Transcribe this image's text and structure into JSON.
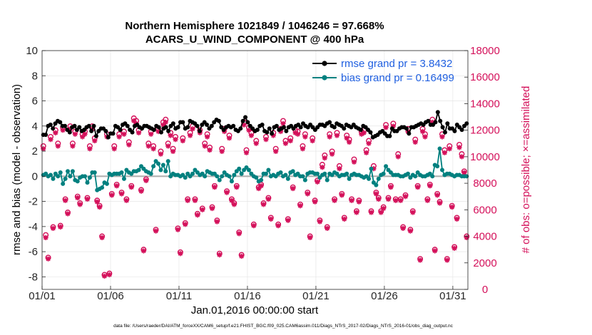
{
  "chart_data": {
    "type": "line",
    "title": "Northern Hemisphere 1021849 / 1046246 = 97.668%",
    "subtitle": "ACARS_U_WIND_COMPONENT @ 400 hPa",
    "xlabel": "Jan.01,2016 00:00:00 start",
    "ylabel_left": "rmse and bias (model - observation)",
    "ylabel_right": "# of obs: o=possible; ×=assimilated",
    "footnote": "data file: /Users/raeder/DAI/ATM_forceXX/CAM6_setup/f.e21.FHIST_BGC.f09_025.CAM6assim.011/Diags_NTrS_2017-02/Diags_NTrS_2016-01/obs_diag_output.nc",
    "xlim": [
      1,
      32.1
    ],
    "ylim_left": [
      -9,
      10
    ],
    "ylim_right": [
      0,
      18000
    ],
    "x_ticks": [
      1,
      6,
      11,
      16,
      21,
      26,
      31
    ],
    "x_tick_labels": [
      "01/01",
      "01/06",
      "01/11",
      "01/16",
      "01/21",
      "01/26",
      "01/31"
    ],
    "y_left_ticks": [
      -8,
      -6,
      -4,
      -2,
      0,
      2,
      4,
      6,
      8,
      10
    ],
    "y_right_ticks": [
      0,
      2000,
      4000,
      6000,
      8000,
      10000,
      12000,
      14000,
      16000,
      18000
    ],
    "zero_line": 0,
    "colors": {
      "rmse": "#000000",
      "bias": "#00807f",
      "obs": "#d4105a",
      "legend_text": "#1f5fe0",
      "zero_line": "#b0b0b0"
    },
    "series": [
      {
        "name": "rmse",
        "legend": "rmse grand pr = 3.8432",
        "axis": "left",
        "values": [
          3.3,
          3.3,
          4.0,
          4.1,
          3.8,
          4.2,
          4.4,
          4.3,
          4.0,
          4.0,
          3.7,
          3.5,
          3.9,
          4.0,
          3.7,
          3.9,
          3.6,
          3.7,
          3.9,
          4.0,
          3.6,
          4.0,
          3.2,
          3.6,
          3.8,
          3.8,
          3.6,
          3.1,
          3.4,
          3.4,
          4.0,
          3.9,
          3.7,
          4.1,
          4.2,
          4.0,
          3.7,
          3.5,
          4.0,
          4.1,
          3.9,
          3.8,
          4.0,
          4.0,
          3.9,
          3.8,
          3.7,
          4.0,
          3.9,
          3.5,
          3.8,
          3.9,
          3.6,
          4.0,
          4.2,
          3.8,
          3.9,
          4.3,
          4.3,
          3.8,
          3.9,
          4.4,
          4.3,
          4.2,
          4.0,
          3.6,
          4.1,
          4.3,
          4.1,
          3.8,
          4.0,
          4.3,
          4.5,
          4.4,
          3.9,
          3.7,
          3.9,
          4.0,
          3.9,
          4.0,
          3.7,
          3.6,
          3.8,
          4.4,
          4.7,
          4.3,
          4.0,
          3.8,
          3.6,
          3.7,
          4.0,
          4.1,
          3.6,
          3.5,
          3.8,
          3.4,
          3.9,
          4.0,
          3.7,
          3.8,
          3.9,
          3.6,
          3.9,
          4.0,
          3.8,
          4.0,
          4.1,
          3.9,
          4.2,
          4.0,
          3.9,
          4.1,
          3.9,
          3.7,
          3.9,
          4.1,
          4.1,
          4.0,
          4.2,
          4.3,
          4.0,
          3.9,
          4.2,
          4.1,
          4.0,
          3.8,
          4.1,
          4.0,
          3.9,
          4.1,
          3.9,
          3.8,
          3.7,
          4.0,
          3.9,
          3.7,
          3.5,
          3.1,
          3.2,
          3.3,
          3.5,
          3.6,
          3.4,
          3.2,
          3.2,
          3.8,
          3.6,
          3.6,
          3.8,
          3.9,
          3.9,
          3.8,
          3.4,
          3.9,
          3.9,
          4.0,
          4.1,
          4.2,
          4.1,
          4.3,
          4.4,
          4.1,
          4.1,
          4.3,
          5.1,
          4.4,
          3.9,
          3.5,
          4.2,
          3.8,
          3.8,
          3.6,
          4.1,
          3.9,
          3.7,
          4.0,
          4.2
        ]
      },
      {
        "name": "bias",
        "legend": "bias grand pr = 0.16499",
        "axis": "left",
        "values": [
          0.1,
          0.2,
          0.0,
          0.1,
          -0.2,
          0.2,
          0.0,
          0.3,
          -0.6,
          -0.2,
          0.4,
          0.0,
          0.4,
          -0.3,
          -0.4,
          -0.1,
          0.0,
          0.0,
          -0.5,
          -0.1,
          0.3,
          0.3,
          -1.1,
          -1.0,
          -0.9,
          -0.5,
          -0.6,
          0.2,
          0.1,
          0.2,
          0.2,
          0.2,
          0.3,
          -0.2,
          0.5,
          0.3,
          0.2,
          0.4,
          0.4,
          0.5,
          0.8,
          0.6,
          0.4,
          0.3,
          0.2,
          0.8,
          1.2,
          1.0,
          0.5,
          0.9,
          0.4,
          1.2,
          0.0,
          0.2,
          0.1,
          0.1,
          0.0,
          0.1,
          -0.1,
          0.2,
          0.0,
          0.2,
          0.5,
          0.3,
          0.1,
          0.2,
          0.0,
          0.4,
          0.3,
          0.2,
          0.2,
          0.0,
          -0.3,
          0.0,
          0.3,
          0.1,
          0.0,
          -0.4,
          0.1,
          0.4,
          0.6,
          0.2,
          0.5,
          0.7,
          0.5,
          0.2,
          0.0,
          -0.1,
          -0.4,
          -0.3,
          0.2,
          0.2,
          0.5,
          0.0,
          0.1,
          0.0,
          0.2,
          0.3,
          0.0,
          0.1,
          -0.2,
          0.3,
          0.4,
          0.1,
          0.2,
          0.0,
          0.0,
          -0.3,
          0.2,
          0.3,
          0.3,
          0.2,
          0.2,
          -0.1,
          0.1,
          0.2,
          -0.3,
          0.2,
          0.1,
          0.3,
          0.2,
          0.0,
          0.1,
          0.1,
          0.2,
          -0.2,
          0.1,
          0.2,
          0.1,
          0.1,
          0.0,
          -0.1,
          0.0,
          -0.2,
          0.6,
          -0.5,
          -0.7,
          -0.2,
          0.1,
          0.2,
          0.8,
          0.5,
          0.3,
          0.1,
          0.1,
          0.1,
          0.0,
          0.0,
          0.1,
          0.2,
          -0.1,
          0.1,
          0.0,
          0.3,
          0.1,
          0.0,
          0.0,
          0.1,
          0.2,
          0.0,
          0.9,
          0.8,
          2.2,
          0.5,
          0.1,
          0.2,
          0.2,
          0.1,
          0.0,
          0.1,
          0.1,
          0.0,
          0.0,
          0.0
        ]
      },
      {
        "name": "obs_possible",
        "marker": "o",
        "axis": "right",
        "values": [
          10800,
          4100,
          2400,
          11500,
          4700,
          12000,
          11000,
          4800,
          12200,
          6800,
          5800,
          12300,
          11000,
          11900,
          7000,
          6500,
          11700,
          11900,
          6900,
          10800,
          12300,
          11400,
          6700,
          6300,
          4000,
          1100,
          11700,
          1200,
          7200,
          10800,
          7900,
          11700,
          7300,
          11900,
          6800,
          11100,
          7800,
          12900,
          12700,
          12000,
          7500,
          3000,
          8300,
          11000,
          11900,
          10800,
          4500,
          12100,
          10400,
          12600,
          12800,
          11000,
          11800,
          10600,
          11500,
          4600,
          2800,
          11400,
          5000,
          6800,
          11800,
          12300,
          6800,
          5700,
          12000,
          6100,
          11000,
          11700,
          10700,
          6200,
          7800,
          5200,
          2700,
          10600,
          12100,
          7400,
          11600,
          6800,
          6500,
          7800,
          4300,
          2600,
          12600,
          10500,
          12200,
          11800,
          4900,
          11200,
          7700,
          7900,
          6500,
          11500,
          6900,
          5400,
          11800,
          10600,
          4900,
          12100,
          12700,
          11200,
          5300,
          11400,
          7700,
          12000,
          11900,
          6400,
          10800,
          11700,
          7300,
          4000,
          11400,
          6700,
          8200,
          5200,
          9400,
          10100,
          4700,
          11700,
          10400,
          6800,
          11800,
          9300,
          7200,
          5400,
          11600,
          11300,
          6800,
          9800,
          5900,
          6700,
          11900,
          12000,
          10500,
          11200,
          5900,
          9300,
          7300,
          6900,
          5900,
          6200,
          12400,
          6900,
          7800,
          12500,
          6800,
          10200,
          6800,
          4700,
          7100,
          12100,
          4500,
          5900,
          11300,
          7800,
          2300,
          12100,
          11700,
          6800,
          7900,
          12800,
          3000,
          7200,
          6600,
          11700,
          10500,
          2300,
          10800,
          6300,
          3200,
          5400,
          10900,
          10200,
          8900,
          4000
        ]
      },
      {
        "name": "obs_assimilated",
        "marker": "x",
        "axis": "right",
        "values": [
          10600,
          3900,
          2300,
          11300,
          4600,
          11800,
          10800,
          4700,
          12000,
          6700,
          5700,
          12100,
          10800,
          11700,
          6900,
          6400,
          11500,
          11700,
          6800,
          10600,
          12100,
          11200,
          6600,
          6200,
          3900,
          1000,
          11500,
          1100,
          7100,
          10600,
          7800,
          11500,
          7200,
          11700,
          6700,
          10900,
          7700,
          12700,
          12500,
          11800,
          7400,
          2900,
          8200,
          10800,
          11700,
          10600,
          4400,
          11900,
          10200,
          12400,
          12600,
          10800,
          11600,
          10400,
          11300,
          4500,
          2700,
          11200,
          4900,
          6700,
          11600,
          12100,
          6700,
          5600,
          11800,
          6000,
          10800,
          11500,
          10500,
          6100,
          7700,
          5100,
          2600,
          10400,
          11900,
          7300,
          11400,
          6700,
          6400,
          7700,
          4200,
          2500,
          12400,
          10300,
          12000,
          11600,
          4800,
          11000,
          7600,
          7800,
          6400,
          11300,
          6800,
          5300,
          11600,
          10400,
          4800,
          11900,
          12500,
          11000,
          5200,
          11200,
          7600,
          11800,
          11700,
          6300,
          10600,
          11500,
          7200,
          3900,
          11200,
          6600,
          8100,
          5100,
          9200,
          9900,
          4600,
          11500,
          10200,
          6700,
          11600,
          9100,
          7100,
          5300,
          11400,
          11100,
          6700,
          9600,
          5800,
          6600,
          11700,
          11800,
          10300,
          11000,
          5800,
          9100,
          7200,
          6800,
          5800,
          6100,
          12200,
          6800,
          7700,
          12300,
          6700,
          10000,
          6700,
          4600,
          7000,
          11900,
          4400,
          5800,
          11100,
          7700,
          2200,
          11900,
          11500,
          6700,
          7800,
          12600,
          2900,
          7100,
          6500,
          11500,
          10300,
          2200,
          10600,
          6200,
          3100,
          5300,
          10700,
          10000,
          8800,
          3900
        ]
      }
    ]
  }
}
